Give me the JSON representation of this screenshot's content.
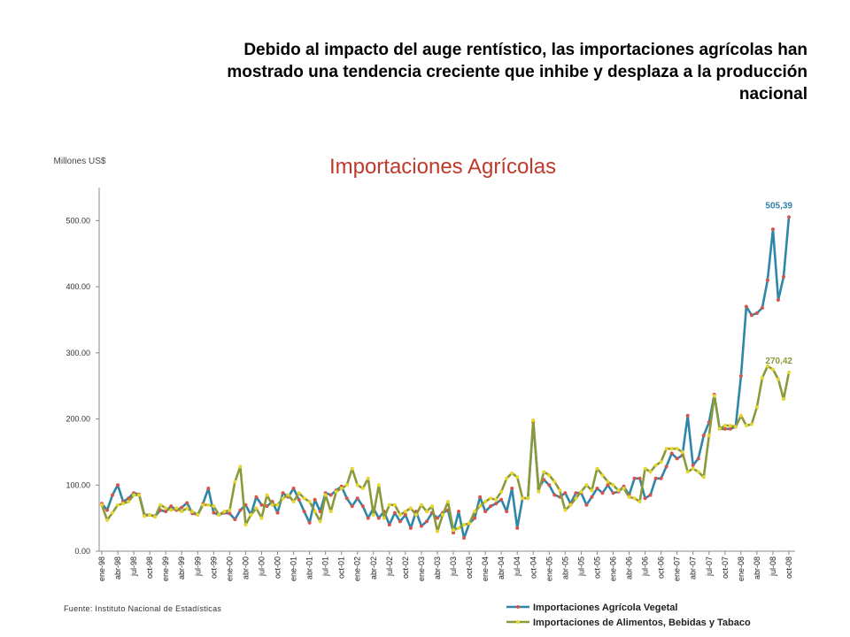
{
  "headline": "Debido al impacto del auge rentístico, las importaciones agrícolas han mostrado una tendencia creciente que inhibe y desplaza a la producción nacional",
  "source": "Fuente: Instituto Nacional de Estadísticas",
  "chart_data": {
    "type": "line",
    "title": "Importaciones Agrícolas",
    "ylabel": "Millones US$",
    "ylim": [
      0,
      550
    ],
    "yticks": [
      {
        "value": 0,
        "label": "0.00"
      },
      {
        "value": 100,
        "label": "100.00"
      },
      {
        "value": 200,
        "label": "200.00"
      },
      {
        "value": 300,
        "label": "300.00"
      },
      {
        "value": 400,
        "label": "400.00"
      },
      {
        "value": 500,
        "label": "500.00"
      }
    ],
    "categories": [
      "ene-98",
      null,
      null,
      "abr-98",
      null,
      null,
      "jul-98",
      null,
      null,
      "oct-98",
      null,
      null,
      "ene-99",
      null,
      null,
      "abr-99",
      null,
      null,
      "jul-99",
      null,
      null,
      "oct-99",
      null,
      null,
      "ene-00",
      null,
      null,
      "abr-00",
      null,
      null,
      "jul-00",
      null,
      null,
      "oct-00",
      null,
      null,
      "ene-01",
      null,
      null,
      "abr-01",
      null,
      null,
      "jul-01",
      null,
      null,
      "oct-01",
      null,
      null,
      "ene-02",
      null,
      null,
      "abr-02",
      null,
      null,
      "jul-02",
      null,
      null,
      "oct-02",
      null,
      null,
      "ene-03",
      null,
      null,
      "abr-03",
      null,
      null,
      "jul-03",
      null,
      null,
      "oct-03",
      null,
      null,
      "ene-04",
      null,
      null,
      "abr-04",
      null,
      null,
      "jul-04",
      null,
      null,
      "oct-04",
      null,
      null,
      "ene-05",
      null,
      null,
      "abr-05",
      null,
      null,
      "jul-05",
      null,
      null,
      "oct-05",
      null,
      null,
      "ene-06",
      null,
      null,
      "abr-06",
      null,
      null,
      "jul-06",
      null,
      null,
      "oct-06",
      null,
      null,
      "ene-07",
      null,
      null,
      "abr-07",
      null,
      null,
      "jul-07",
      null,
      null,
      "oct-07",
      null,
      null,
      "ene-08",
      null,
      null,
      "abr-08",
      null,
      null,
      "jul-08",
      null,
      null,
      "oct-08"
    ],
    "series": [
      {
        "name": "Importaciones Agrícola Vegetal",
        "color": "#2e86a8",
        "marker_color": "#d9534a",
        "label_color": "#2e7fa6",
        "values": [
          72,
          62,
          85,
          100,
          75,
          80,
          88,
          86,
          55,
          55,
          53,
          62,
          60,
          68,
          62,
          66,
          73,
          57,
          55,
          72,
          95,
          58,
          55,
          58,
          57,
          48,
          62,
          70,
          55,
          82,
          70,
          68,
          75,
          58,
          88,
          82,
          95,
          78,
          60,
          43,
          78,
          60,
          88,
          85,
          92,
          98,
          80,
          68,
          80,
          68,
          50,
          65,
          50,
          60,
          40,
          58,
          45,
          55,
          35,
          60,
          38,
          45,
          58,
          50,
          58,
          62,
          28,
          60,
          20,
          42,
          50,
          82,
          60,
          68,
          72,
          78,
          60,
          95,
          35,
          80,
          80,
          195,
          95,
          108,
          100,
          85,
          82,
          88,
          72,
          88,
          88,
          70,
          82,
          95,
          88,
          100,
          88,
          90,
          98,
          85,
          110,
          110,
          80,
          85,
          110,
          110,
          128,
          148,
          140,
          145,
          205,
          130,
          140,
          175,
          195,
          237,
          185,
          185,
          185,
          188,
          265,
          370,
          357,
          360,
          368,
          410,
          487,
          380,
          415,
          505.39
        ],
        "value_labels": [
          null,
          null,
          null,
          null,
          null,
          null,
          null,
          null,
          null,
          null,
          null,
          null,
          null,
          null,
          null,
          null,
          null,
          null,
          null,
          null,
          null,
          null,
          null,
          null,
          null,
          null,
          null,
          null,
          null,
          null,
          null,
          null,
          null,
          null,
          null,
          null,
          null,
          null,
          null,
          null,
          null,
          null,
          null,
          null,
          null,
          null,
          null,
          null,
          null,
          null,
          null,
          null,
          null,
          null,
          null,
          null,
          null,
          null,
          null,
          null,
          null,
          null,
          null,
          null,
          null,
          null,
          null,
          null,
          null,
          null,
          null,
          null,
          null,
          null,
          null,
          null,
          null,
          null,
          null,
          null,
          null,
          null,
          null,
          null,
          null,
          null,
          null,
          null,
          null,
          null,
          null,
          null,
          null,
          null,
          null,
          null,
          null,
          null,
          null,
          null,
          null,
          null,
          null,
          null,
          null,
          null,
          null,
          null,
          null,
          null,
          null,
          null,
          null,
          null,
          null,
          null,
          null,
          null,
          null,
          null,
          null,
          null,
          null,
          null,
          null,
          null,
          null,
          null,
          null,
          "505,39"
        ]
      },
      {
        "name": "Importaciones de Alimentos, Bebidas y Tabaco",
        "color": "#8a9a3b",
        "marker_color": "#e8d62c",
        "label_color": "#8a9a3b",
        "values": [
          70,
          47,
          58,
          70,
          72,
          75,
          85,
          85,
          53,
          55,
          52,
          70,
          65,
          62,
          65,
          60,
          65,
          60,
          55,
          70,
          70,
          68,
          55,
          60,
          62,
          105,
          128,
          40,
          55,
          65,
          50,
          85,
          70,
          70,
          80,
          85,
          75,
          88,
          80,
          75,
          60,
          45,
          85,
          60,
          90,
          95,
          100,
          125,
          100,
          95,
          110,
          55,
          100,
          50,
          70,
          70,
          55,
          60,
          65,
          55,
          70,
          60,
          68,
          30,
          55,
          75,
          32,
          35,
          40,
          42,
          60,
          68,
          75,
          80,
          78,
          90,
          110,
          118,
          112,
          80,
          80,
          198,
          90,
          120,
          115,
          105,
          92,
          62,
          70,
          80,
          90,
          100,
          92,
          125,
          115,
          105,
          100,
          92,
          95,
          82,
          80,
          75,
          125,
          120,
          130,
          135,
          155,
          155,
          155,
          150,
          120,
          125,
          120,
          112,
          175,
          235,
          185,
          190,
          190,
          188,
          205,
          190,
          192,
          218,
          262,
          280,
          275,
          260,
          230,
          270.42
        ],
        "value_labels": [
          null,
          null,
          null,
          null,
          null,
          null,
          null,
          null,
          null,
          null,
          null,
          null,
          null,
          null,
          null,
          null,
          null,
          null,
          null,
          null,
          null,
          null,
          null,
          null,
          null,
          null,
          null,
          null,
          null,
          null,
          null,
          null,
          null,
          null,
          null,
          null,
          null,
          null,
          null,
          null,
          null,
          null,
          null,
          null,
          null,
          null,
          null,
          null,
          null,
          null,
          null,
          null,
          null,
          null,
          null,
          null,
          null,
          null,
          null,
          null,
          null,
          null,
          null,
          null,
          null,
          null,
          null,
          null,
          null,
          null,
          null,
          null,
          null,
          null,
          null,
          null,
          null,
          null,
          null,
          null,
          null,
          null,
          null,
          null,
          null,
          null,
          null,
          null,
          null,
          null,
          null,
          null,
          null,
          null,
          null,
          null,
          null,
          null,
          null,
          null,
          null,
          null,
          null,
          null,
          null,
          null,
          null,
          null,
          null,
          null,
          null,
          null,
          null,
          null,
          null,
          null,
          null,
          null,
          null,
          null,
          null,
          null,
          null,
          null,
          null,
          null,
          null,
          null,
          null,
          "270,42"
        ]
      }
    ]
  }
}
